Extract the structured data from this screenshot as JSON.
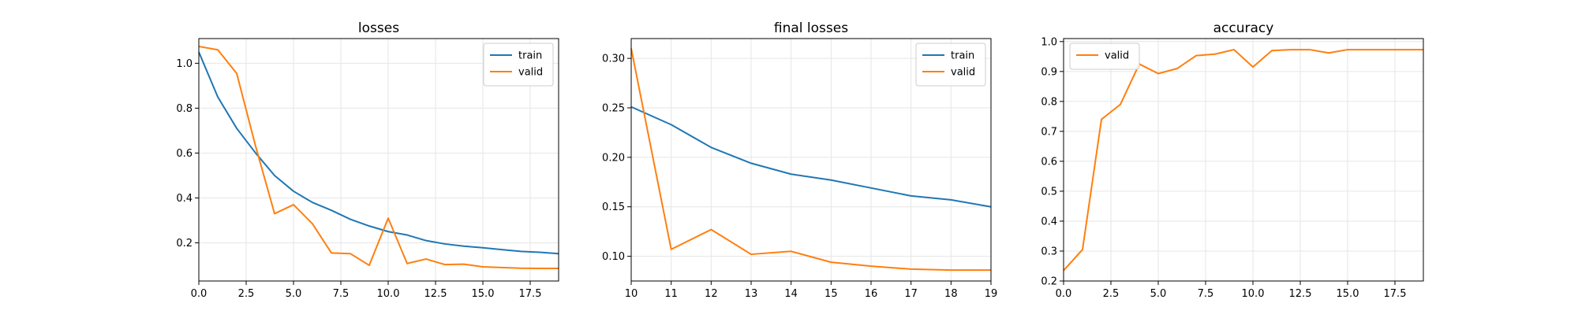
{
  "figure": {
    "colors": {
      "train": "#1f77b4",
      "valid": "#ff7f0e",
      "grid": "#e6e6e6",
      "axes": "#000000"
    }
  },
  "chart_data": [
    {
      "type": "line",
      "title": "losses",
      "xlabel": "",
      "ylabel": "",
      "xlim": [
        0,
        19
      ],
      "ylim": [
        0.03,
        1.11
      ],
      "xticks": [
        0,
        2.5,
        5,
        7.5,
        10,
        12.5,
        15,
        17.5
      ],
      "xtick_labels": [
        "0.0",
        "2.5",
        "5.0",
        "7.5",
        "10.0",
        "12.5",
        "15.0",
        "17.5"
      ],
      "yticks": [
        0.2,
        0.4,
        0.6,
        0.8,
        1.0
      ],
      "ytick_labels": [
        "0.2",
        "0.4",
        "0.6",
        "0.8",
        "1.0"
      ],
      "grid": true,
      "legend": "top-right",
      "series": [
        {
          "name": "train",
          "color": "#1f77b4",
          "x": [
            0,
            1,
            2,
            3,
            4,
            5,
            6,
            7,
            8,
            9,
            10,
            11,
            12,
            13,
            14,
            15,
            16,
            17,
            18,
            19
          ],
          "values": [
            1.05,
            0.85,
            0.71,
            0.6,
            0.5,
            0.43,
            0.38,
            0.345,
            0.305,
            0.275,
            0.25,
            0.235,
            0.21,
            0.195,
            0.185,
            0.178,
            0.17,
            0.162,
            0.158,
            0.152
          ]
        },
        {
          "name": "valid",
          "color": "#ff7f0e",
          "x": [
            0,
            1,
            2,
            3,
            4,
            5,
            6,
            7,
            8,
            9,
            10,
            11,
            12,
            13,
            14,
            15,
            16,
            17,
            18,
            19
          ],
          "values": [
            1.075,
            1.06,
            0.955,
            0.63,
            0.33,
            0.37,
            0.285,
            0.155,
            0.152,
            0.1,
            0.31,
            0.108,
            0.128,
            0.103,
            0.105,
            0.093,
            0.09,
            0.087,
            0.086,
            0.086
          ]
        }
      ]
    },
    {
      "type": "line",
      "title": "final losses",
      "xlabel": "",
      "ylabel": "",
      "xlim": [
        10,
        19
      ],
      "ylim": [
        0.075,
        0.32
      ],
      "xticks": [
        10,
        11,
        12,
        13,
        14,
        15,
        16,
        17,
        18,
        19
      ],
      "xtick_labels": [
        "10",
        "11",
        "12",
        "13",
        "14",
        "15",
        "16",
        "17",
        "18",
        "19"
      ],
      "yticks": [
        0.1,
        0.15,
        0.2,
        0.25,
        0.3
      ],
      "ytick_labels": [
        "0.10",
        "0.15",
        "0.20",
        "0.25",
        "0.30"
      ],
      "grid": true,
      "legend": "top-right",
      "series": [
        {
          "name": "train",
          "color": "#1f77b4",
          "x": [
            10,
            11,
            12,
            13,
            14,
            15,
            16,
            17,
            18,
            19
          ],
          "values": [
            0.251,
            0.233,
            0.21,
            0.194,
            0.183,
            0.177,
            0.169,
            0.161,
            0.157,
            0.15
          ]
        },
        {
          "name": "valid",
          "color": "#ff7f0e",
          "x": [
            10,
            11,
            12,
            13,
            14,
            15,
            16,
            17,
            18,
            19
          ],
          "values": [
            0.31,
            0.107,
            0.127,
            0.102,
            0.105,
            0.094,
            0.09,
            0.087,
            0.086,
            0.086
          ]
        }
      ]
    },
    {
      "type": "line",
      "title": "accuracy",
      "xlabel": "",
      "ylabel": "",
      "xlim": [
        0,
        19
      ],
      "ylim": [
        0.2,
        1.01
      ],
      "xticks": [
        0,
        2.5,
        5,
        7.5,
        10,
        12.5,
        15,
        17.5
      ],
      "xtick_labels": [
        "0.0",
        "2.5",
        "5.0",
        "7.5",
        "10.0",
        "12.5",
        "15.0",
        "17.5"
      ],
      "yticks": [
        0.2,
        0.3,
        0.4,
        0.5,
        0.6,
        0.7,
        0.8,
        0.9,
        1.0
      ],
      "ytick_labels": [
        "0.2",
        "0.3",
        "0.4",
        "0.5",
        "0.6",
        "0.7",
        "0.8",
        "0.9",
        "1.0"
      ],
      "grid": true,
      "legend": "top-left",
      "series": [
        {
          "name": "valid",
          "color": "#ff7f0e",
          "x": [
            0,
            1,
            2,
            3,
            4,
            5,
            6,
            7,
            8,
            9,
            10,
            11,
            12,
            13,
            14,
            15,
            16,
            17,
            18,
            19
          ],
          "values": [
            0.235,
            0.305,
            0.74,
            0.79,
            0.925,
            0.893,
            0.91,
            0.953,
            0.958,
            0.973,
            0.915,
            0.97,
            0.973,
            0.973,
            0.962,
            0.973,
            0.973,
            0.973,
            0.973,
            0.973
          ]
        }
      ]
    }
  ]
}
